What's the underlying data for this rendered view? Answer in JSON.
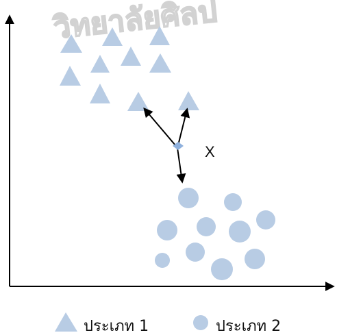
{
  "watermark": {
    "text": "วิทยาลัยศิลป"
  },
  "diagram": {
    "query_point_label": "X",
    "colors": {
      "shape_fill": "#b8cce4",
      "query_fill": "#8fb1dd",
      "axis": "#000000",
      "arrow": "#000000"
    }
  },
  "legend": {
    "items": [
      {
        "label": "ประเภท 1",
        "icon": "triangle-icon"
      },
      {
        "label": "ประเภท 2",
        "icon": "circle-icon"
      }
    ]
  }
}
